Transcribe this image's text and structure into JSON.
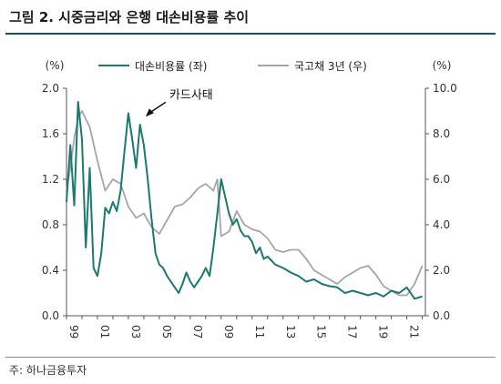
{
  "figure": {
    "title": "그림 2. 시중금리와 은행 대손비용률 추이",
    "source": "주: 하나금융투자"
  },
  "chart_data": {
    "type": "line",
    "left_axis": {
      "unit": "(%)",
      "range": [
        0,
        2.0
      ],
      "ticks": [
        "0.0",
        "0.4",
        "0.8",
        "1.2",
        "1.6",
        "2.0"
      ]
    },
    "right_axis": {
      "unit": "(%)",
      "range": [
        0,
        10.0
      ],
      "ticks": [
        "0.0",
        "2.0",
        "4.0",
        "6.0",
        "8.0",
        "10.0"
      ]
    },
    "x_range": [
      1999,
      2022.2
    ],
    "x_ticks": [
      {
        "year": 1999,
        "label": "99"
      },
      {
        "year": 2001,
        "label": "01"
      },
      {
        "year": 2003,
        "label": "03"
      },
      {
        "year": 2005,
        "label": "05"
      },
      {
        "year": 2007,
        "label": "07"
      },
      {
        "year": 2009,
        "label": "09"
      },
      {
        "year": 2011,
        "label": "11"
      },
      {
        "year": 2013,
        "label": "13"
      },
      {
        "year": 2015,
        "label": "15"
      },
      {
        "year": 2017,
        "label": "17"
      },
      {
        "year": 2019,
        "label": "19"
      },
      {
        "year": 2021,
        "label": "21"
      }
    ],
    "legend_position": "top",
    "annotation": {
      "text": "카드사태",
      "x": 2004.0,
      "y": 1.75
    },
    "colors": {
      "credit_cost": "#1a7a6e",
      "bond": "#a6a6a6",
      "axis": "#555555"
    },
    "series": [
      {
        "name": "대손비용률 (좌)",
        "axis": "left",
        "x": [
          1999.0,
          1999.25,
          1999.5,
          1999.75,
          2000.0,
          2000.25,
          2000.5,
          2000.75,
          2001.0,
          2001.25,
          2001.5,
          2001.75,
          2002.0,
          2002.25,
          2002.5,
          2002.75,
          2003.0,
          2003.25,
          2003.5,
          2003.75,
          2004.0,
          2004.25,
          2004.5,
          2004.75,
          2005.0,
          2005.25,
          2005.5,
          2005.75,
          2006.0,
          2006.25,
          2006.5,
          2006.75,
          2007.0,
          2007.25,
          2007.5,
          2007.75,
          2008.0,
          2008.25,
          2008.5,
          2008.75,
          2009.0,
          2009.25,
          2009.5,
          2009.75,
          2010.0,
          2010.25,
          2010.5,
          2010.75,
          2011.0,
          2011.25,
          2011.5,
          2011.75,
          2012.0,
          2012.5,
          2013.0,
          2013.5,
          2014.0,
          2014.5,
          2015.0,
          2015.5,
          2016.0,
          2016.5,
          2017.0,
          2017.5,
          2018.0,
          2018.5,
          2019.0,
          2019.5,
          2020.0,
          2020.5,
          2021.0,
          2021.5,
          2022.0
        ],
        "values": [
          1.0,
          1.5,
          0.97,
          1.88,
          1.55,
          0.6,
          1.3,
          0.42,
          0.35,
          0.55,
          0.95,
          0.9,
          1.0,
          0.92,
          1.1,
          1.45,
          1.78,
          1.55,
          1.3,
          1.68,
          1.5,
          1.2,
          0.85,
          0.55,
          0.45,
          0.42,
          0.35,
          0.3,
          0.25,
          0.2,
          0.28,
          0.38,
          0.3,
          0.25,
          0.3,
          0.35,
          0.42,
          0.35,
          0.6,
          0.9,
          1.2,
          1.05,
          0.9,
          0.8,
          0.85,
          0.75,
          0.7,
          0.7,
          0.65,
          0.55,
          0.6,
          0.5,
          0.52,
          0.45,
          0.42,
          0.38,
          0.35,
          0.3,
          0.32,
          0.28,
          0.26,
          0.25,
          0.2,
          0.22,
          0.2,
          0.18,
          0.2,
          0.17,
          0.22,
          0.2,
          0.25,
          0.15,
          0.17
        ]
      },
      {
        "name": "국고채 3년 (우)",
        "axis": "right",
        "x": [
          1999.0,
          1999.25,
          1999.5,
          1999.75,
          2000.0,
          2000.5,
          2001.0,
          2001.5,
          2002.0,
          2002.5,
          2003.0,
          2003.5,
          2004.0,
          2004.5,
          2005.0,
          2005.5,
          2006.0,
          2006.5,
          2007.0,
          2007.5,
          2008.0,
          2008.5,
          2008.75,
          2009.0,
          2009.5,
          2010.0,
          2010.5,
          2011.0,
          2011.5,
          2012.0,
          2012.5,
          2013.0,
          2013.5,
          2014.0,
          2014.5,
          2015.0,
          2015.5,
          2016.0,
          2016.5,
          2017.0,
          2017.5,
          2018.0,
          2018.5,
          2019.0,
          2019.5,
          2020.0,
          2020.5,
          2021.0,
          2021.5,
          2022.0
        ],
        "values": [
          5.5,
          6.5,
          7.8,
          8.7,
          9.0,
          8.3,
          6.8,
          5.5,
          6.0,
          5.8,
          4.8,
          4.3,
          4.5,
          3.9,
          3.6,
          4.2,
          4.8,
          4.9,
          5.2,
          5.6,
          5.8,
          5.5,
          6.0,
          3.5,
          3.7,
          4.6,
          4.0,
          3.8,
          3.7,
          3.4,
          2.9,
          2.8,
          2.9,
          2.9,
          2.5,
          2.0,
          1.8,
          1.6,
          1.4,
          1.7,
          1.9,
          2.1,
          2.2,
          1.8,
          1.3,
          1.1,
          0.9,
          0.9,
          1.4,
          2.2
        ]
      }
    ]
  }
}
